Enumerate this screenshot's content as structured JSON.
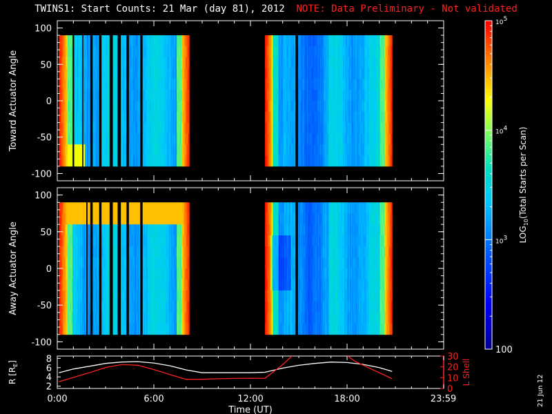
{
  "title": {
    "main": "TWINS1: Start Counts: 21 Mar (day  81), 2012",
    "note": "NOTE: Data Preliminary - Not validated"
  },
  "date_stamp": "21 Jun 12",
  "colors": {
    "background": "#000000",
    "axes": "#ffffff",
    "note": "#ff2020",
    "lshell": "#ff2020",
    "radius": "#ffffff"
  },
  "chart_data": [
    {
      "type": "heatmap",
      "panel": "toward",
      "ylabel": "Toward Actuator Angle",
      "ylim": [
        -110,
        110
      ],
      "yticks": [
        100,
        50,
        0,
        -50,
        -100
      ],
      "xlim": [
        0,
        24
      ],
      "data_segments_hours": [
        [
          0.1,
          8.2
        ],
        [
          12.9,
          20.8
        ]
      ],
      "gaps_hours": [
        [
          0.95,
          1.05
        ],
        [
          1.55,
          1.62
        ],
        [
          2.05,
          2.2
        ],
        [
          2.6,
          2.75
        ],
        [
          3.25,
          3.45
        ],
        [
          3.75,
          3.95
        ],
        [
          4.3,
          4.45
        ],
        [
          5.15,
          5.3
        ],
        [
          14.8,
          14.95
        ]
      ]
    },
    {
      "type": "heatmap",
      "panel": "away",
      "ylabel": "Away Actuator Angle",
      "ylim": [
        -110,
        110
      ],
      "yticks": [
        100,
        50,
        0,
        -50,
        -100
      ],
      "xlim": [
        0,
        24
      ],
      "data_segments_hours": [
        [
          0.1,
          8.2
        ],
        [
          12.9,
          20.8
        ]
      ],
      "gaps_hours": [
        [
          1.8,
          1.88
        ],
        [
          2.05,
          2.2
        ],
        [
          2.6,
          2.75
        ],
        [
          3.25,
          3.45
        ],
        [
          3.75,
          3.95
        ],
        [
          4.3,
          4.45
        ],
        [
          5.15,
          5.3
        ],
        [
          14.8,
          14.95
        ]
      ]
    },
    {
      "type": "line",
      "panel": "orbit",
      "xlabel": "Time (UT)",
      "x_ticks": [
        "0:00",
        "6:00",
        "12:00",
        "18:00",
        "23:59"
      ],
      "xlim": [
        0,
        24
      ],
      "left_axis": {
        "label": "R [R",
        "label_sub": "E",
        "label_end": "]",
        "ylim": [
          1.5,
          8.5
        ],
        "ticks": [
          2,
          4,
          6,
          8
        ]
      },
      "right_axis": {
        "label": "L Shell",
        "ylim": [
          0,
          30
        ],
        "ticks": [
          0,
          10,
          20,
          30
        ]
      },
      "series": [
        {
          "axis": "left",
          "color": "#ffffff",
          "x": [
            0.1,
            1,
            2,
            3,
            4,
            5,
            6,
            7,
            8,
            9,
            10,
            11,
            12,
            12.9,
            14,
            15,
            16,
            17,
            18,
            19,
            20,
            20.8
          ],
          "y": [
            4.9,
            5.7,
            6.3,
            6.9,
            7.2,
            7.3,
            7.0,
            6.4,
            5.5,
            4.9,
            4.9,
            4.9,
            4.9,
            5.0,
            5.9,
            6.5,
            6.9,
            7.2,
            7.1,
            6.7,
            6.0,
            5.2
          ]
        },
        {
          "axis": "right",
          "color": "#ff2020",
          "x": [
            0.1,
            1,
            2,
            3,
            4,
            5,
            6,
            7,
            8,
            9,
            10,
            11,
            12,
            12.9,
            14,
            15
          ],
          "y": [
            6.2,
            10.2,
            14.6,
            19.4,
            22.1,
            21.5,
            17.5,
            12.8,
            8.5,
            8.5,
            9.0,
            9.3,
            9.5,
            9.4,
            22,
            36
          ]
        },
        {
          "axis": "right",
          "color": "#ff2020",
          "x": [
            17.5,
            18.5,
            19.5,
            20.3,
            20.8
          ],
          "y": [
            36,
            25,
            18,
            12.5,
            9.0
          ]
        }
      ]
    }
  ],
  "colorbar": {
    "label": "LOG",
    "label_sub": "10",
    "label_rest": "(Total Starts per Scan)",
    "scale": "log",
    "range": [
      100,
      100000
    ],
    "ticks": [
      {
        "mantissa": "10",
        "exponent": "5"
      },
      {
        "mantissa": "10",
        "exponent": "4"
      },
      {
        "mantissa": "10",
        "exponent": "3"
      },
      {
        "mantissa": "100",
        "exponent": ""
      }
    ]
  }
}
